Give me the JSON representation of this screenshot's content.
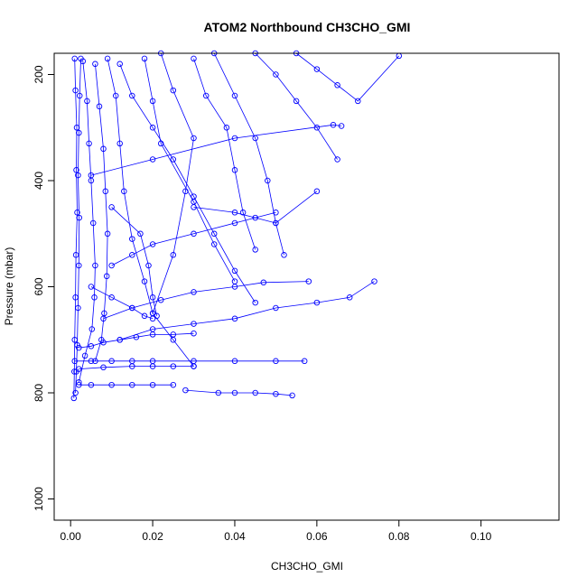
{
  "chart_data": {
    "type": "line",
    "title": "ATOM2 Northbound CH3CHO_GMI",
    "xlabel": "CH3CHO_GMI",
    "ylabel": "Pressure (mbar)",
    "xlim": [
      -0.004,
      0.119
    ],
    "ylim": [
      1040,
      160
    ],
    "y_reversed": true,
    "xticks": [
      0.0,
      0.02,
      0.04,
      0.06,
      0.08,
      0.1
    ],
    "xtick_labels": [
      "0.00",
      "0.02",
      "0.04",
      "0.06",
      "0.08",
      "0.10"
    ],
    "yticks": [
      200,
      400,
      600,
      800,
      1000
    ],
    "ytick_labels": [
      "200",
      "400",
      "600",
      "800",
      "1000"
    ],
    "series_color": "#0000ff",
    "marker": "open-circle",
    "grid": false,
    "series": [
      {
        "x": [
          0.001,
          0.0012,
          0.0015,
          0.0014,
          0.0016,
          0.0013,
          0.0012,
          0.001,
          0.0009,
          0.0008
        ],
        "y": [
          170,
          230,
          300,
          380,
          460,
          540,
          620,
          700,
          760,
          810
        ]
      },
      {
        "x": [
          0.0025,
          0.0022,
          0.002,
          0.0018,
          0.0021,
          0.002,
          0.0018,
          0.0016,
          0.0014,
          0.0012
        ],
        "y": [
          170,
          240,
          310,
          390,
          470,
          560,
          640,
          710,
          760,
          800
        ]
      },
      {
        "x": [
          0.003,
          0.004,
          0.0045,
          0.005,
          0.0055,
          0.006,
          0.0058,
          0.0052,
          0.0035,
          0.002
        ],
        "y": [
          175,
          250,
          330,
          400,
          480,
          560,
          620,
          680,
          730,
          780
        ]
      },
      {
        "x": [
          0.006,
          0.007,
          0.008,
          0.0085,
          0.009,
          0.0088,
          0.0082,
          0.0075,
          0.006
        ],
        "y": [
          180,
          260,
          340,
          420,
          500,
          580,
          650,
          700,
          740
        ]
      },
      {
        "x": [
          0.009,
          0.011,
          0.012,
          0.013,
          0.015,
          0.018,
          0.02,
          0.025,
          0.03
        ],
        "y": [
          170,
          240,
          330,
          420,
          510,
          590,
          650,
          700,
          750
        ]
      },
      {
        "x": [
          0.012,
          0.015,
          0.02,
          0.025,
          0.03,
          0.035,
          0.04,
          0.045
        ],
        "y": [
          180,
          240,
          300,
          360,
          430,
          500,
          570,
          630
        ]
      },
      {
        "x": [
          0.018,
          0.02,
          0.022,
          0.03,
          0.035,
          0.04
        ],
        "y": [
          170,
          250,
          330,
          440,
          520,
          590
        ]
      },
      {
        "x": [
          0.022,
          0.025,
          0.03,
          0.028,
          0.025,
          0.02
        ],
        "y": [
          160,
          230,
          320,
          420,
          540,
          650
        ]
      },
      {
        "x": [
          0.03,
          0.033,
          0.038,
          0.04,
          0.042,
          0.045
        ],
        "y": [
          170,
          240,
          300,
          380,
          460,
          530
        ]
      },
      {
        "x": [
          0.035,
          0.04,
          0.045,
          0.048,
          0.05,
          0.052
        ],
        "y": [
          160,
          240,
          320,
          400,
          480,
          540
        ]
      },
      {
        "x": [
          0.045,
          0.05,
          0.055,
          0.06,
          0.065
        ],
        "y": [
          160,
          200,
          250,
          300,
          360
        ]
      },
      {
        "x": [
          0.055,
          0.06,
          0.065,
          0.07,
          0.08
        ],
        "y": [
          160,
          190,
          220,
          250,
          165
        ]
      },
      {
        "x": [
          0.005,
          0.02,
          0.04,
          0.064,
          0.066
        ],
        "y": [
          390,
          360,
          320,
          295,
          297
        ]
      },
      {
        "x": [
          0.01,
          0.015,
          0.02,
          0.03,
          0.04,
          0.05
        ],
        "y": [
          560,
          540,
          520,
          500,
          480,
          460
        ]
      },
      {
        "x": [
          0.008,
          0.015,
          0.022,
          0.03,
          0.04,
          0.047,
          0.058
        ],
        "y": [
          660,
          640,
          625,
          610,
          600,
          592,
          590
        ]
      },
      {
        "x": [
          0.012,
          0.02,
          0.03,
          0.04,
          0.05,
          0.06,
          0.068,
          0.074
        ],
        "y": [
          700,
          680,
          670,
          660,
          640,
          630,
          620,
          590
        ]
      },
      {
        "x": [
          0.001,
          0.005,
          0.01,
          0.015,
          0.02,
          0.03,
          0.04,
          0.05,
          0.057
        ],
        "y": [
          740,
          740,
          740,
          740,
          740,
          740,
          740,
          740,
          740
        ]
      },
      {
        "x": [
          0.002,
          0.008,
          0.015,
          0.02,
          0.025,
          0.03
        ],
        "y": [
          755,
          752,
          750,
          750,
          750,
          750
        ]
      },
      {
        "x": [
          0.002,
          0.005,
          0.01,
          0.015,
          0.02,
          0.025
        ],
        "y": [
          785,
          785,
          785,
          785,
          785,
          785
        ]
      },
      {
        "x": [
          0.028,
          0.036,
          0.04,
          0.045,
          0.05,
          0.054
        ],
        "y": [
          795,
          800,
          800,
          800,
          802,
          805
        ]
      },
      {
        "x": [
          0.002,
          0.005,
          0.008,
          0.012,
          0.016,
          0.02,
          0.025,
          0.03
        ],
        "y": [
          715,
          712,
          705,
          700,
          695,
          690,
          690,
          688
        ]
      },
      {
        "x": [
          0.005,
          0.01,
          0.015,
          0.018,
          0.02
        ],
        "y": [
          600,
          620,
          640,
          655,
          660
        ]
      },
      {
        "x": [
          0.01,
          0.017,
          0.019,
          0.02,
          0.021
        ],
        "y": [
          450,
          500,
          560,
          620,
          655
        ]
      },
      {
        "x": [
          0.03,
          0.04,
          0.045,
          0.05,
          0.06
        ],
        "y": [
          450,
          460,
          470,
          480,
          420
        ]
      }
    ]
  }
}
